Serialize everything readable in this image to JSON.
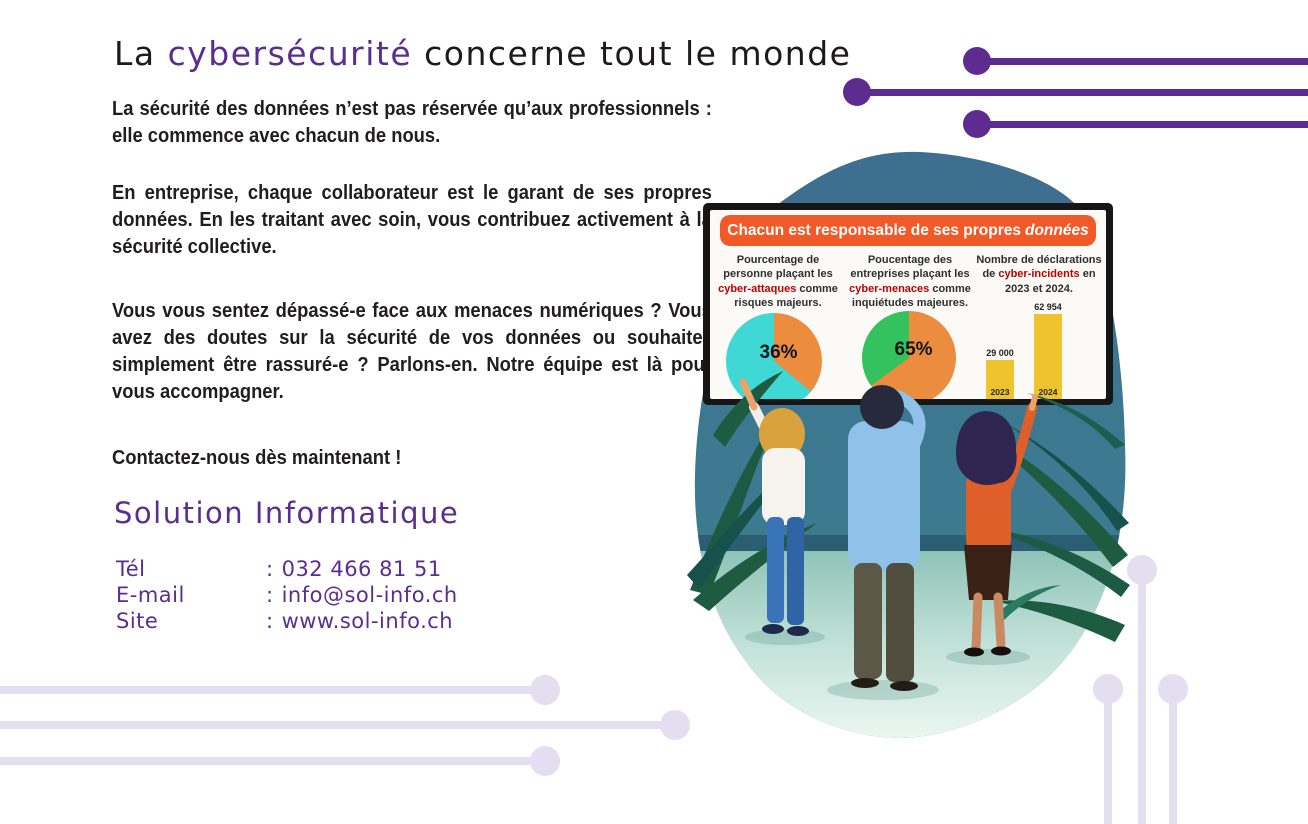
{
  "title": {
    "prefix": "La ",
    "highlight": "cybersécurité",
    "suffix": " concerne tout le monde"
  },
  "paragraphs": [
    "La sécurité des données n’est pas réservée qu’aux professionnels : elle commence avec chacun de nous.",
    "En entreprise, chaque collaborateur est le garant de ses propres données. En les traitant avec soin, vous contribuez activement à la sécurité collective.",
    "Vous vous sentez dépassé-e face aux menaces numériques ? Vous avez des doutes sur la sécurité de vos données ou souhaitez simplement être rassuré-e ? Parlons-en. Notre équipe est là pour vous accompagner.",
    "Contactez-nous dès maintenant !"
  ],
  "brand": {
    "name": "Solution Informatique"
  },
  "contact": {
    "rows": [
      {
        "label": "Tél",
        "sep": ":",
        "value": "032 466 81 51"
      },
      {
        "label": "E-mail",
        "sep": ":",
        "value": "info@sol-info.ch"
      },
      {
        "label": "Site",
        "sep": ":",
        "value": "www.sol-info.ch"
      }
    ]
  },
  "screen": {
    "banner_text": "Chacun est responsable de ses propres",
    "banner_italic": "données",
    "columns": [
      {
        "before": "Pourcentage de personne plaçant les ",
        "red": "cyber-attaques",
        "after": " comme risques majeurs."
      },
      {
        "before": "Poucentage des entreprises plaçant les ",
        "red": "cyber-menaces",
        "after": " comme inquiétudes majeures."
      },
      {
        "before": "Nombre de déclarations de ",
        "red": "cyber-incidents",
        "after": " en 2023 et 2024."
      }
    ]
  },
  "chart_data": [
    {
      "type": "pie",
      "title": "Pourcentage de personne plaçant les cyber-attaques comme risques majeurs.",
      "values": [
        36,
        64
      ],
      "colors": [
        "#ec8c3e",
        "#3fd8d4"
      ],
      "center_label": "36%"
    },
    {
      "type": "pie",
      "title": "Poucentage des entreprises plaçant les cyber-menaces comme inquiétudes majeures.",
      "values": [
        65,
        35
      ],
      "colors": [
        "#ec8c3e",
        "#33c25e"
      ],
      "center_label": "65%"
    },
    {
      "type": "bar",
      "title": "Nombre de déclarations de cyber-incidents en 2023 et 2024.",
      "categories": [
        "2023",
        "2024"
      ],
      "values": [
        29000,
        62954
      ],
      "value_labels": [
        "29 000",
        "62 954"
      ],
      "color": "#eec32d",
      "ylim": [
        0,
        65000
      ]
    }
  ],
  "colors": {
    "accent_purple": "#5e2c91",
    "lavender": "#e4def0",
    "banner_orange": "#f15a28",
    "highlight_red": "#c00000",
    "pie_cyan": "#3fd8d4",
    "pie_orange": "#ec8c3e",
    "pie_green": "#33c25e",
    "bar_yellow": "#eec32d"
  }
}
